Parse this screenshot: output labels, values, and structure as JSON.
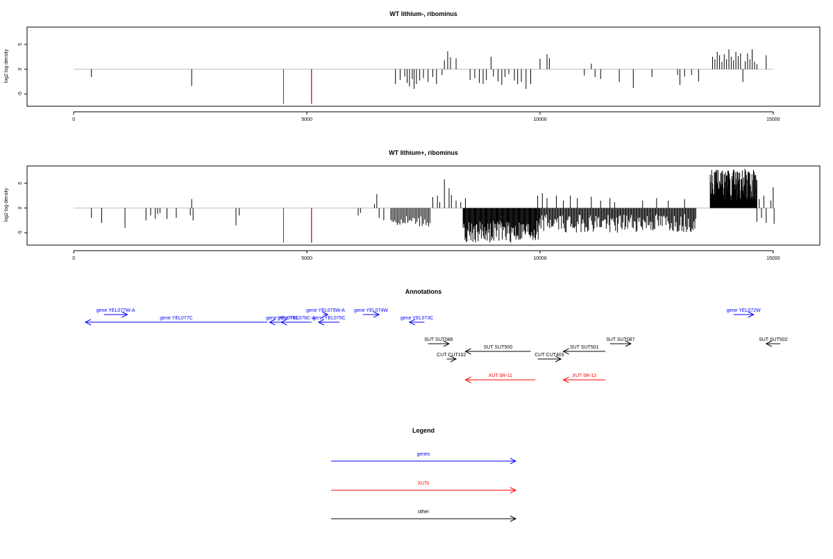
{
  "colors": {
    "gene": "#0000ff",
    "xut": "#ff0000",
    "other": "#000000",
    "baseline": "#bebebe",
    "bar": "#000000",
    "highlight_bar": "#ff0000"
  },
  "chart_data": [
    {
      "type": "bar",
      "title": "WT lithium-, ribominus",
      "ylabel": "log2 log density",
      "xlim": [
        -1000,
        16000
      ],
      "ylim": [
        -7.5,
        8.5
      ],
      "xticks": [
        0,
        5000,
        10000,
        15000
      ],
      "yticks": [
        -5,
        0,
        5
      ],
      "baseline": [
        0,
        15000
      ],
      "highlight_positions": [
        4500,
        5100
      ],
      "highlight_value": -7,
      "sparse_bars": [
        {
          "x": 380,
          "y": -1.6
        },
        {
          "x": 2530,
          "y": -3.4
        },
        {
          "x": 4500,
          "y": -7
        },
        {
          "x": 5100,
          "y": -7
        },
        {
          "x": 6900,
          "y": -3
        },
        {
          "x": 7000,
          "y": -2.2
        },
        {
          "x": 7100,
          "y": -1.5
        },
        {
          "x": 7150,
          "y": -2.8
        },
        {
          "x": 7200,
          "y": -3.5
        },
        {
          "x": 7260,
          "y": -2
        },
        {
          "x": 7300,
          "y": -4
        },
        {
          "x": 7350,
          "y": -3
        },
        {
          "x": 7420,
          "y": -2.3
        },
        {
          "x": 7500,
          "y": -1.8
        },
        {
          "x": 7600,
          "y": -2.6
        },
        {
          "x": 7700,
          "y": -1.6
        },
        {
          "x": 7780,
          "y": -3
        },
        {
          "x": 7900,
          "y": -1.2
        },
        {
          "x": 7950,
          "y": 1.8
        },
        {
          "x": 8020,
          "y": 3.6
        },
        {
          "x": 8080,
          "y": 2.4
        },
        {
          "x": 8200,
          "y": 2.2
        },
        {
          "x": 8500,
          "y": -2.2
        },
        {
          "x": 8600,
          "y": -1.8
        },
        {
          "x": 8700,
          "y": -2.8
        },
        {
          "x": 8780,
          "y": -3
        },
        {
          "x": 8850,
          "y": -2.2
        },
        {
          "x": 8950,
          "y": 2.5
        },
        {
          "x": 9000,
          "y": -1.5
        },
        {
          "x": 9100,
          "y": -2.5
        },
        {
          "x": 9180,
          "y": -3.2
        },
        {
          "x": 9250,
          "y": -1.6
        },
        {
          "x": 9330,
          "y": -1
        },
        {
          "x": 9450,
          "y": -2.3
        },
        {
          "x": 9520,
          "y": -3
        },
        {
          "x": 9600,
          "y": -2.6
        },
        {
          "x": 9700,
          "y": -4
        },
        {
          "x": 9800,
          "y": -3
        },
        {
          "x": 10000,
          "y": 2.1
        },
        {
          "x": 10150,
          "y": 3
        },
        {
          "x": 10200,
          "y": 2.2
        },
        {
          "x": 10950,
          "y": -1.3
        },
        {
          "x": 11100,
          "y": 1.1
        },
        {
          "x": 11180,
          "y": -1.6
        },
        {
          "x": 11300,
          "y": -2
        },
        {
          "x": 11700,
          "y": -2.6
        },
        {
          "x": 12000,
          "y": -3.8
        },
        {
          "x": 12400,
          "y": -1.6
        },
        {
          "x": 12950,
          "y": -1.2
        },
        {
          "x": 13000,
          "y": -3.2
        },
        {
          "x": 13100,
          "y": -1.5
        },
        {
          "x": 13250,
          "y": -1.2
        },
        {
          "x": 13400,
          "y": -2.5
        },
        {
          "x": 13700,
          "y": 2.5
        },
        {
          "x": 13750,
          "y": 2
        },
        {
          "x": 13800,
          "y": 3.5
        },
        {
          "x": 13850,
          "y": 2.8
        },
        {
          "x": 13900,
          "y": 1.5
        },
        {
          "x": 13950,
          "y": 3
        },
        {
          "x": 14000,
          "y": 2
        },
        {
          "x": 14050,
          "y": 4
        },
        {
          "x": 14100,
          "y": 2.5
        },
        {
          "x": 14150,
          "y": 1.8
        },
        {
          "x": 14200,
          "y": 3.5
        },
        {
          "x": 14250,
          "y": 2.6
        },
        {
          "x": 14300,
          "y": 3.2
        },
        {
          "x": 14350,
          "y": -2.6
        },
        {
          "x": 14400,
          "y": 1.6
        },
        {
          "x": 14450,
          "y": 3.2
        },
        {
          "x": 14500,
          "y": 2
        },
        {
          "x": 14550,
          "y": 4
        },
        {
          "x": 14600,
          "y": 1.5
        },
        {
          "x": 14650,
          "y": 1
        },
        {
          "x": 14850,
          "y": 2.8
        }
      ]
    },
    {
      "type": "bar",
      "title": "WT lithium+, ribominus",
      "ylabel": "log2 log density",
      "xlim": [
        -1000,
        16000
      ],
      "ylim": [
        -7.5,
        8.5
      ],
      "xticks": [
        0,
        5000,
        10000,
        15000
      ],
      "yticks": [
        -5,
        0,
        5
      ],
      "baseline": [
        0,
        15000
      ],
      "highlight_positions": [
        4500,
        5100
      ],
      "highlight_value": -7,
      "sparse_bars": [
        {
          "x": 380,
          "y": -2
        },
        {
          "x": 600,
          "y": -3
        },
        {
          "x": 1100,
          "y": -4
        },
        {
          "x": 1550,
          "y": -2.5
        },
        {
          "x": 1650,
          "y": -1.5
        },
        {
          "x": 1750,
          "y": -2.2
        },
        {
          "x": 1800,
          "y": -1.2
        },
        {
          "x": 1850,
          "y": -1
        },
        {
          "x": 2000,
          "y": -2.2
        },
        {
          "x": 2200,
          "y": -2
        },
        {
          "x": 2500,
          "y": -1.5
        },
        {
          "x": 2530,
          "y": 1.8
        },
        {
          "x": 2560,
          "y": -2.5
        },
        {
          "x": 3480,
          "y": -3.5
        },
        {
          "x": 3550,
          "y": -1.5
        },
        {
          "x": 4500,
          "y": -7
        },
        {
          "x": 5100,
          "y": -7
        },
        {
          "x": 6100,
          "y": -1.5
        },
        {
          "x": 6150,
          "y": -1
        },
        {
          "x": 6450,
          "y": 0.8
        },
        {
          "x": 6500,
          "y": 2.8
        },
        {
          "x": 6550,
          "y": -2
        },
        {
          "x": 6650,
          "y": -2.5
        },
        {
          "x": 7700,
          "y": 2.2
        },
        {
          "x": 7800,
          "y": 2.5
        },
        {
          "x": 7850,
          "y": 1.2
        },
        {
          "x": 7950,
          "y": 5.8
        },
        {
          "x": 8050,
          "y": 4
        },
        {
          "x": 8100,
          "y": 2.6
        },
        {
          "x": 8200,
          "y": 1.5
        },
        {
          "x": 8300,
          "y": 1.2
        },
        {
          "x": 8400,
          "y": 2
        },
        {
          "x": 9950,
          "y": 2.5
        },
        {
          "x": 10050,
          "y": 3
        },
        {
          "x": 10150,
          "y": 2
        },
        {
          "x": 10350,
          "y": 2.5
        },
        {
          "x": 10500,
          "y": 1.5
        },
        {
          "x": 10650,
          "y": 2.5
        },
        {
          "x": 10800,
          "y": 2
        },
        {
          "x": 11100,
          "y": 2.3
        },
        {
          "x": 11300,
          "y": 1.5
        },
        {
          "x": 11500,
          "y": 2
        },
        {
          "x": 11600,
          "y": 1.2
        },
        {
          "x": 12200,
          "y": 1.5
        },
        {
          "x": 12500,
          "y": 2
        },
        {
          "x": 12750,
          "y": 1.5
        },
        {
          "x": 13100,
          "y": 1.8
        },
        {
          "x": 14650,
          "y": -2.8
        },
        {
          "x": 14700,
          "y": 1.8
        },
        {
          "x": 14750,
          "y": -2
        },
        {
          "x": 14800,
          "y": 2.5
        },
        {
          "x": 14850,
          "y": -3
        },
        {
          "x": 14950,
          "y": 1.5
        },
        {
          "x": 15000,
          "y": 4.2
        },
        {
          "x": 15020,
          "y": -3.2
        }
      ],
      "dense_regions": [
        {
          "x_start": 6800,
          "x_end": 7650,
          "y_min": -3.8,
          "y_max": -1.5,
          "spacing": 28
        },
        {
          "x_start": 8350,
          "x_end": 10000,
          "y_min": -7,
          "y_max": -2.5,
          "spacing": 14
        },
        {
          "x_start": 10000,
          "x_end": 13350,
          "y_min": -5,
          "y_max": -1.2,
          "spacing": 20
        },
        {
          "x_start": 13650,
          "x_end": 14650,
          "y_min": 1.5,
          "y_max": 8,
          "spacing": 8
        }
      ]
    }
  ],
  "annotations": {
    "title": "Annotations",
    "xlim": [
      -1000,
      16000
    ],
    "rows": [
      [
        {
          "label": "gene YEL077W-A",
          "start": 650,
          "end": 1150,
          "strand": "+",
          "kind": "gene"
        },
        {
          "label": "gene YEL075W-A",
          "start": 5350,
          "end": 5450,
          "strand": "+",
          "kind": "gene"
        },
        {
          "label": "gene YEL074W",
          "start": 6200,
          "end": 6550,
          "strand": "+",
          "kind": "gene"
        },
        {
          "label": "gene YEL072W",
          "start": 14150,
          "end": 14580,
          "strand": "+",
          "kind": "gene"
        }
      ],
      [
        {
          "label": "gene YEL077C",
          "start": 250,
          "end": 4150,
          "strand": "-",
          "kind": "gene"
        },
        {
          "label": "gene YEL076C",
          "start": 4200,
          "end": 4750,
          "strand": "-",
          "kind": "gene"
        },
        {
          "label": "gene YEL076C-A",
          "start": 4450,
          "end": 5100,
          "strand": "-",
          "kind": "gene"
        },
        {
          "label": "gene YEL075C",
          "start": 5250,
          "end": 5700,
          "strand": "-",
          "kind": "gene"
        },
        {
          "label": "gene YEL073C",
          "start": 7200,
          "end": 7520,
          "strand": "-",
          "kind": "gene"
        }
      ],
      [
        {
          "label": "SUT SUT086",
          "start": 7600,
          "end": 8050,
          "strand": "+",
          "kind": "other"
        },
        {
          "label": "SUT SUT087",
          "start": 11500,
          "end": 11950,
          "strand": "+",
          "kind": "other"
        },
        {
          "label": "SUT SUT502",
          "start": 14850,
          "end": 15150,
          "strand": "-",
          "kind": "other"
        }
      ],
      [
        {
          "label": "SUT SUT500",
          "start": 8400,
          "end": 9800,
          "strand": "-",
          "kind": "other"
        },
        {
          "label": "SUT SUT501",
          "start": 10500,
          "end": 11400,
          "strand": "-",
          "kind": "other"
        }
      ],
      [
        {
          "label": "CUT CUT102",
          "start": 8000,
          "end": 8200,
          "strand": "+",
          "kind": "other"
        },
        {
          "label": "CUT CUT403",
          "start": 9950,
          "end": 10450,
          "strand": "+",
          "kind": "other"
        }
      ],
      [
        {
          "label": "XUT 5R-11",
          "start": 8400,
          "end": 9900,
          "strand": "-",
          "kind": "xut"
        },
        {
          "label": "XUT 5R-12",
          "start": 10500,
          "end": 11400,
          "strand": "-",
          "kind": "xut"
        }
      ]
    ]
  },
  "legend": {
    "title": "Legend",
    "items": [
      {
        "label": "genes",
        "kind": "gene"
      },
      {
        "label": "XUTs",
        "kind": "xut"
      },
      {
        "label": "other",
        "kind": "other"
      }
    ]
  }
}
